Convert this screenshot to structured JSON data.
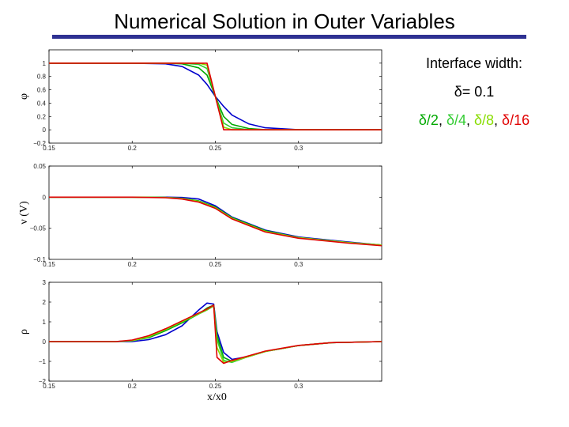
{
  "title": "Numerical Solution in Outer Variables",
  "legend": {
    "heading": "Interface width:",
    "delta_line": "δ= 0.1",
    "fractions": [
      {
        "label": "δ/2",
        "color": "#00a800"
      },
      {
        "label": "δ/4",
        "color": "#33cc33"
      },
      {
        "label": "δ/8",
        "color": "#88dd00"
      },
      {
        "label": "δ/16",
        "color": "#e00000"
      }
    ],
    "separator": ", "
  },
  "colors": {
    "delta": "#0000cc",
    "delta_2": "#00a800",
    "delta_4": "#33cc33",
    "delta_8": "#88dd00",
    "delta_16": "#e00000",
    "title_rule": "#2e3192"
  },
  "chart_data": [
    {
      "type": "line",
      "ylabel": "φ",
      "xlabel": "",
      "xlim": [
        0.15,
        0.35
      ],
      "ylim": [
        -0.2,
        1.2
      ],
      "xticks": [
        "0.15",
        "0.2",
        "0.25",
        "0.3"
      ],
      "yticks": [
        "1",
        "0.8",
        "0.6",
        "0.4",
        "0.2",
        "0",
        "−0.2"
      ],
      "x": [
        0.15,
        0.2,
        0.22,
        0.23,
        0.24,
        0.245,
        0.25,
        0.255,
        0.26,
        0.27,
        0.28,
        0.3,
        0.35
      ],
      "series": [
        {
          "name": "δ",
          "color": "#0000cc",
          "values": [
            1,
            1,
            0.99,
            0.95,
            0.82,
            0.68,
            0.5,
            0.35,
            0.22,
            0.09,
            0.03,
            0.0,
            0
          ]
        },
        {
          "name": "δ/2",
          "color": "#00a800",
          "values": [
            1,
            1,
            1,
            0.99,
            0.93,
            0.82,
            0.5,
            0.2,
            0.08,
            0.02,
            0.0,
            0,
            0
          ]
        },
        {
          "name": "δ/4",
          "color": "#33cc33",
          "values": [
            1,
            1,
            1,
            1,
            0.98,
            0.92,
            0.5,
            0.1,
            0.03,
            0.0,
            0,
            0,
            0
          ]
        },
        {
          "name": "δ/8",
          "color": "#88dd00",
          "values": [
            1,
            1,
            1,
            1,
            1,
            0.97,
            0.5,
            0.04,
            0.0,
            0,
            0,
            0,
            0
          ]
        },
        {
          "name": "δ/16",
          "color": "#e00000",
          "values": [
            1,
            1,
            1,
            1,
            1,
            1,
            0.5,
            0.0,
            0,
            0,
            0,
            0,
            0
          ]
        }
      ]
    },
    {
      "type": "line",
      "ylabel": "ν (V)",
      "xlabel": "",
      "xlim": [
        0.15,
        0.35
      ],
      "ylim": [
        -0.1,
        0.05
      ],
      "xticks": [
        "0.15",
        "0.2",
        "0.25",
        "0.3"
      ],
      "yticks": [
        "0.05",
        "0",
        "−0.05",
        "−0.1"
      ],
      "x": [
        0.15,
        0.2,
        0.22,
        0.23,
        0.24,
        0.25,
        0.26,
        0.28,
        0.3,
        0.33,
        0.35
      ],
      "series": [
        {
          "name": "δ",
          "color": "#0000cc",
          "values": [
            0,
            0,
            0,
            -0.0005,
            -0.003,
            -0.014,
            -0.032,
            -0.053,
            -0.064,
            -0.072,
            -0.077
          ]
        },
        {
          "name": "δ/2",
          "color": "#00a800",
          "values": [
            0,
            0,
            -0.0005,
            -0.002,
            -0.006,
            -0.016,
            -0.033,
            -0.054,
            -0.065,
            -0.073,
            -0.077
          ]
        },
        {
          "name": "δ/4",
          "color": "#33cc33",
          "values": [
            0,
            0,
            -0.0005,
            -0.002,
            -0.007,
            -0.017,
            -0.034,
            -0.055,
            -0.065,
            -0.073,
            -0.077
          ]
        },
        {
          "name": "δ/8",
          "color": "#88dd00",
          "values": [
            0,
            0,
            -0.0005,
            -0.002,
            -0.007,
            -0.017,
            -0.034,
            -0.055,
            -0.065,
            -0.073,
            -0.077
          ]
        },
        {
          "name": "δ/16",
          "color": "#e00000",
          "values": [
            0,
            0,
            -0.001,
            -0.003,
            -0.008,
            -0.018,
            -0.035,
            -0.056,
            -0.066,
            -0.074,
            -0.078
          ]
        }
      ]
    },
    {
      "type": "line",
      "ylabel": "ρ",
      "xlabel": "x/x0",
      "xlim": [
        0.15,
        0.35
      ],
      "ylim": [
        -2,
        3
      ],
      "xticks": [
        "0.15",
        "0.2",
        "0.25",
        "0.3"
      ],
      "yticks": [
        "3",
        "2",
        "1",
        "0",
        "−1",
        "−2"
      ],
      "x": [
        0.15,
        0.19,
        0.2,
        0.21,
        0.22,
        0.23,
        0.24,
        0.245,
        0.249,
        0.251,
        0.255,
        0.26,
        0.27,
        0.28,
        0.3,
        0.32,
        0.35
      ],
      "series": [
        {
          "name": "δ",
          "color": "#0000cc",
          "values": [
            0,
            0,
            0,
            0.1,
            0.35,
            0.8,
            1.6,
            1.95,
            1.9,
            0.5,
            -0.55,
            -0.9,
            -0.75,
            -0.5,
            -0.2,
            -0.05,
            0
          ]
        },
        {
          "name": "δ/2",
          "color": "#00a800",
          "values": [
            0,
            0,
            0.05,
            0.2,
            0.55,
            0.95,
            1.4,
            1.7,
            1.85,
            0.3,
            -0.8,
            -1.0,
            -0.75,
            -0.5,
            -0.2,
            -0.05,
            0
          ]
        },
        {
          "name": "δ/4",
          "color": "#33cc33",
          "values": [
            0,
            0,
            0.05,
            0.25,
            0.6,
            1.0,
            1.4,
            1.6,
            1.8,
            0.1,
            -0.95,
            -1.05,
            -0.75,
            -0.5,
            -0.2,
            -0.05,
            0
          ]
        },
        {
          "name": "δ/8",
          "color": "#88dd00",
          "values": [
            0,
            0,
            0.05,
            0.25,
            0.62,
            1.02,
            1.42,
            1.62,
            1.82,
            -0.3,
            -1.05,
            -1.0,
            -0.75,
            -0.5,
            -0.2,
            -0.05,
            0
          ]
        },
        {
          "name": "δ/16",
          "color": "#e00000",
          "values": [
            0,
            0,
            0.08,
            0.3,
            0.65,
            1.05,
            1.45,
            1.65,
            1.85,
            -0.8,
            -1.1,
            -0.95,
            -0.72,
            -0.48,
            -0.19,
            -0.05,
            0
          ]
        }
      ]
    }
  ]
}
